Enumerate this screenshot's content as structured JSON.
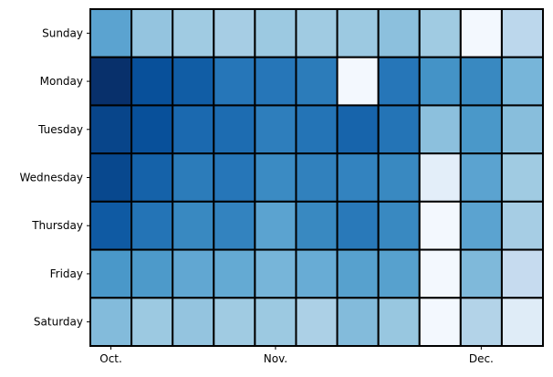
{
  "chart_data": {
    "type": "heatmap",
    "title": "",
    "xlabel": "",
    "ylabel": "",
    "rows": [
      "Sunday",
      "Monday",
      "Tuesday",
      "Wednesday",
      "Thursday",
      "Friday",
      "Saturday"
    ],
    "x_ticks": [
      {
        "label": "Oct.",
        "column": 0
      },
      {
        "label": "Nov.",
        "column": 4
      },
      {
        "label": "Dec.",
        "column": 9
      }
    ],
    "columns_count": 11,
    "colormap": "Blues",
    "value_range": [
      0,
      1
    ],
    "values": [
      [
        0.55,
        0.4,
        0.37,
        0.35,
        0.38,
        0.37,
        0.38,
        0.42,
        0.37,
        0.02,
        0.28
      ],
      [
        1.0,
        0.88,
        0.83,
        0.73,
        0.73,
        0.71,
        0.02,
        0.73,
        0.62,
        0.66,
        0.47
      ],
      [
        0.92,
        0.88,
        0.78,
        0.77,
        0.7,
        0.74,
        0.8,
        0.74,
        0.42,
        0.6,
        0.43
      ],
      [
        0.91,
        0.81,
        0.71,
        0.73,
        0.65,
        0.69,
        0.68,
        0.66,
        0.1,
        0.55,
        0.37
      ],
      [
        0.84,
        0.74,
        0.66,
        0.68,
        0.55,
        0.66,
        0.72,
        0.66,
        0.02,
        0.55,
        0.35
      ],
      [
        0.6,
        0.59,
        0.53,
        0.52,
        0.47,
        0.51,
        0.56,
        0.56,
        0.02,
        0.45,
        0.25
      ],
      [
        0.44,
        0.38,
        0.4,
        0.37,
        0.38,
        0.33,
        0.44,
        0.39,
        0.02,
        0.31,
        0.12
      ]
    ],
    "cell_border_color": "#000000",
    "grid": false,
    "legend": "none"
  }
}
